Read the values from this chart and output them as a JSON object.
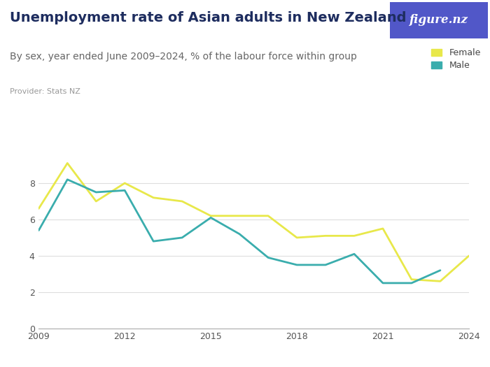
{
  "title": "Unemployment rate of Asian adults in New Zealand",
  "subtitle": "By sex, year ended June 2009–2024, % of the labour force within group",
  "provider": "Provider: Stats NZ",
  "logo_text": "figure.nz",
  "logo_bg": "#5157c8",
  "years": [
    2009,
    2010,
    2011,
    2012,
    2013,
    2014,
    2015,
    2016,
    2017,
    2018,
    2019,
    2020,
    2021,
    2022,
    2023,
    2024
  ],
  "female": [
    6.6,
    9.1,
    7.0,
    8.0,
    7.2,
    7.0,
    6.2,
    6.2,
    6.2,
    5.0,
    5.1,
    5.1,
    5.5,
    2.7,
    2.6,
    4.0
  ],
  "male": [
    5.4,
    8.2,
    7.5,
    7.6,
    4.8,
    5.0,
    6.1,
    5.2,
    3.9,
    3.5,
    3.5,
    4.1,
    2.5,
    2.5,
    3.2,
    null
  ],
  "female_color": "#e8e84a",
  "male_color": "#3aadad",
  "background_color": "#ffffff",
  "title_color": "#1e2d5f",
  "subtitle_color": "#666666",
  "provider_color": "#999999",
  "ylim": [
    0,
    10
  ],
  "yticks": [
    0,
    2,
    4,
    6,
    8
  ],
  "xticks": [
    2009,
    2012,
    2015,
    2018,
    2021,
    2024
  ],
  "grid_color": "#dddddd",
  "title_fontsize": 14,
  "subtitle_fontsize": 10,
  "provider_fontsize": 8,
  "legend_female": "Female",
  "legend_male": "Male"
}
